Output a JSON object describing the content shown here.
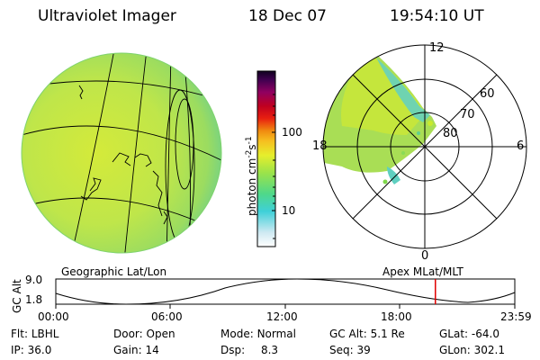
{
  "header": {
    "instrument": "Ultraviolet Imager",
    "date": "18 Dec 07",
    "time": "19:54:10 UT"
  },
  "colorbar": {
    "unit_label": "photon cm",
    "unit_exp1": "-2",
    "unit_s": "s",
    "unit_exp2": "-1",
    "tick_high": "100",
    "tick_low": "10"
  },
  "panels": {
    "left_caption": "Geographic Lat/Lon",
    "right_caption": "Apex MLat/MLT"
  },
  "polar_plot": {
    "mlt_labels": {
      "top": "12",
      "left": "18",
      "right": "6",
      "bottom": "0"
    },
    "lat_labels": [
      "60",
      "70",
      "80"
    ]
  },
  "orbit_plot": {
    "ylabel": "GC Alt",
    "y_ticks": [
      "9.0",
      "1.8"
    ],
    "x_ticks": [
      "00:00",
      "06:00",
      "12:00",
      "18:00",
      "23:59"
    ],
    "current_time_fraction": 0.827
  },
  "info": {
    "row1": [
      {
        "label": "Flt:",
        "value": "LBHL"
      },
      {
        "label": "Door:",
        "value": "Open"
      },
      {
        "label": "Mode:",
        "value": "Normal"
      },
      {
        "label": "GC Alt:",
        "value": "5.1 Re"
      },
      {
        "label": "GLat:",
        "value": "-64.0"
      }
    ],
    "row2": [
      {
        "label": "IP:",
        "value": "36.0"
      },
      {
        "label": "Gain:",
        "value": "14"
      },
      {
        "label": "Dsp:",
        "value": "8.3"
      },
      {
        "label": "Seq:",
        "value": "39"
      },
      {
        "label": "GLon:",
        "value": "302.1"
      }
    ]
  },
  "colors": {
    "orbit_marker": "#e00000",
    "globe_fill": "#b8e64a",
    "globe_edge": "#7fd36e"
  }
}
